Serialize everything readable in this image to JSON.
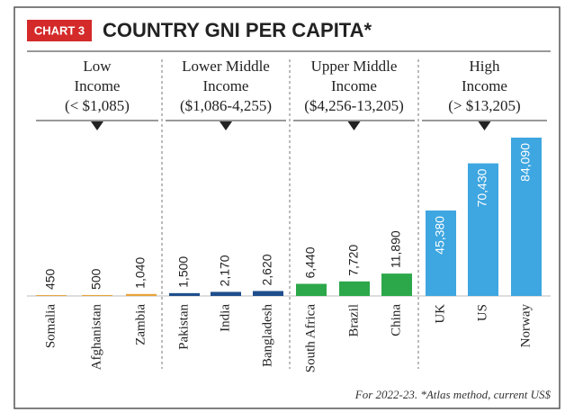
{
  "chart_data": {
    "type": "bar",
    "badge": "CHART 3",
    "title": "COUNTRY GNI PER CAPITA*",
    "groups": [
      {
        "lines": [
          "Low",
          "Income",
          "(< $1,085)"
        ]
      },
      {
        "lines": [
          "Lower Middle",
          "Income",
          "($1,086-4,255)"
        ]
      },
      {
        "lines": [
          "Upper Middle",
          "Income",
          "($4,256-13,205)"
        ]
      },
      {
        "lines": [
          "High",
          "Income",
          "(> $13,205)"
        ]
      }
    ],
    "categories": [
      "Somalia",
      "Afghanistan",
      "Zambia",
      "Pakistan",
      "India",
      "Bangladesh",
      "South Africa",
      "Brazil",
      "China",
      "UK",
      "US",
      "Norway"
    ],
    "values": [
      450,
      500,
      1040,
      1500,
      2170,
      2620,
      6440,
      7720,
      11890,
      45380,
      70430,
      84090
    ],
    "value_labels": [
      "450",
      "500",
      "1,040",
      "1,500",
      "2,170",
      "2,620",
      "6,440",
      "7,720",
      "11,890",
      "45,380",
      "70,430",
      "84,090"
    ],
    "colors": [
      "#e8a33a",
      "#e8a33a",
      "#e8a33a",
      "#1f4e8c",
      "#1f4e8c",
      "#1f4e8c",
      "#2ca84a",
      "#2ca84a",
      "#2ca84a",
      "#3ea6e0",
      "#3ea6e0",
      "#3ea6e0"
    ],
    "footnote": "For 2022-23. *Atlas method, current US$"
  }
}
